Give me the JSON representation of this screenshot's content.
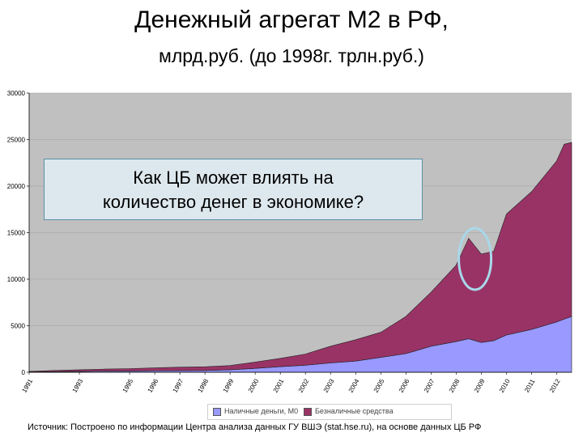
{
  "title": "Денежный агрегат М2 в РФ,",
  "subtitle": "млрд.руб. (до 1998г. трлн.руб.)",
  "callout": {
    "line1": "Как ЦБ может влиять на",
    "line2": "количество денег в экономике?"
  },
  "source": "Источник: Построено по информации Центра анализа данных ГУ ВШЭ (stat.hse.ru), на основе данных ЦБ РФ",
  "colors": {
    "plot_bg": "#c0c0c0",
    "cash": "#9999ff",
    "noncash": "#993366",
    "highlight": "#a8d8ea"
  },
  "chart_data": {
    "type": "area",
    "stacked": true,
    "ylim": [
      0,
      30000
    ],
    "yticks": [
      "0",
      "5000",
      "10000",
      "15000",
      "20000",
      "25000",
      "30000"
    ],
    "grid": true,
    "legend_position": "bottom",
    "xtick_labels": [
      "1991",
      "1993",
      "1995",
      "1996",
      "1997",
      "1998",
      "1999",
      "2000",
      "2001",
      "2002",
      "2003",
      "2004",
      "2005",
      "2006",
      "2007",
      "2008",
      "2009",
      "2010",
      "2011",
      "2012"
    ],
    "x": [
      1991,
      1992,
      1993,
      1994,
      1995,
      1996,
      1997,
      1998,
      1999,
      2000,
      2001,
      2002,
      2003,
      2004,
      2005,
      2006,
      2007,
      2008,
      2008.5,
      2009,
      2009.5,
      2010,
      2011,
      2012,
      2012.3,
      2012.6
    ],
    "series": [
      {
        "name": "Наличные деньги, М0",
        "values": [
          30,
          60,
          100,
          120,
          140,
          160,
          180,
          190,
          270,
          420,
          600,
          760,
          1000,
          1200,
          1600,
          2000,
          2800,
          3300,
          3600,
          3200,
          3400,
          4000,
          4600,
          5400,
          5700,
          6000
        ]
      },
      {
        "name": "Безналичные средства",
        "values": [
          70,
          130,
          170,
          220,
          250,
          310,
          370,
          400,
          450,
          680,
          900,
          1200,
          1800,
          2300,
          2700,
          4000,
          5800,
          8200,
          10800,
          9500,
          9600,
          13000,
          14800,
          17300,
          18800,
          18700
        ]
      }
    ]
  }
}
